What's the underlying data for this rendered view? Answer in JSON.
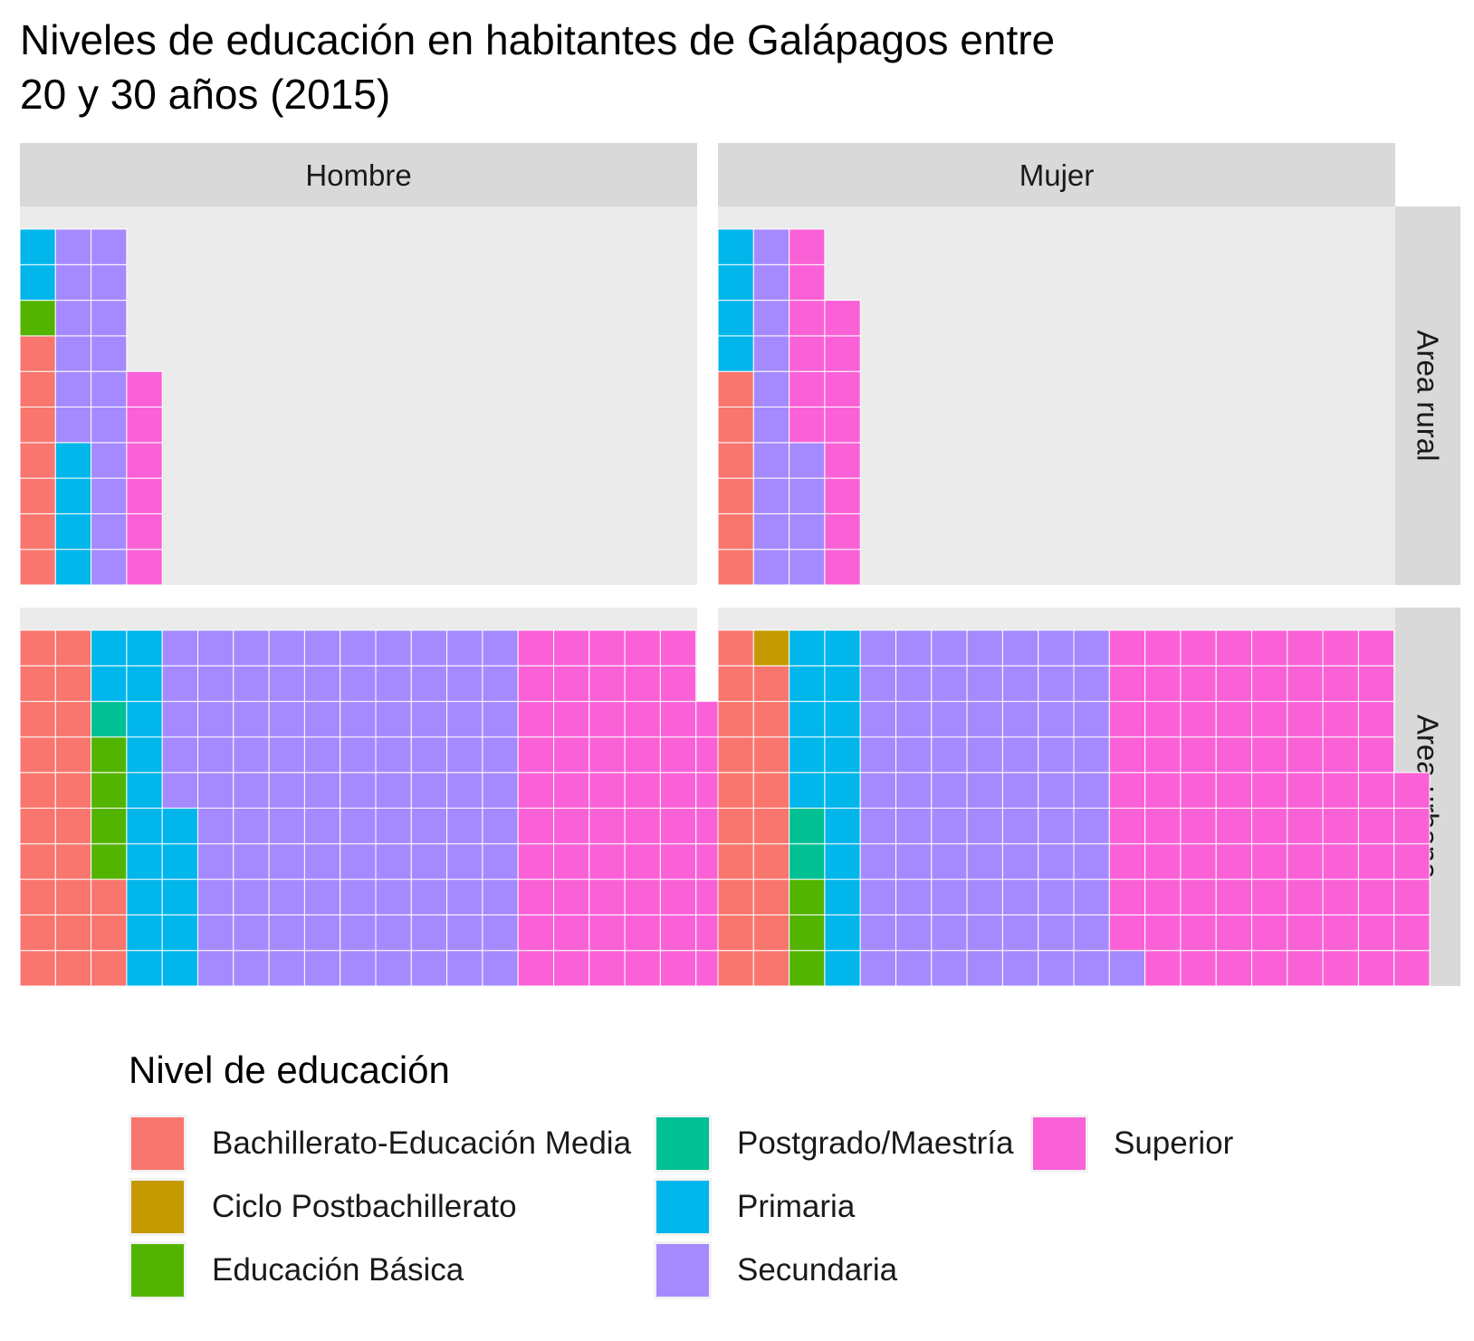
{
  "title_lines": [
    "Niveles de educación en habitantes de Galápagos entre",
    "20 y 30 años (2015)"
  ],
  "chart_data": {
    "type": "waffle",
    "title": "Niveles de educación en habitantes de Galápagos entre 20 y 30 años (2015)",
    "facet_columns": [
      "Hombre",
      "Mujer"
    ],
    "facet_rows": [
      "Area rural",
      "Area urbana"
    ],
    "grid_rows": 10,
    "fill_order": "column-wise, bottom to top, left to right",
    "categories": [
      {
        "name": "Bachillerato-Educación Media",
        "color": "#F8766D"
      },
      {
        "name": "Ciclo Postbachillerato",
        "color": "#C49A00"
      },
      {
        "name": "Educación Básica",
        "color": "#53B400"
      },
      {
        "name": "Postgrado/Maestría",
        "color": "#00C094"
      },
      {
        "name": "Primaria",
        "color": "#00B6EB"
      },
      {
        "name": "Secundaria",
        "color": "#A58AFF"
      },
      {
        "name": "Superior",
        "color": "#FB61D7"
      }
    ],
    "panels": [
      {
        "column": "Hombre",
        "row": "Area rural",
        "counts": {
          "Bachillerato-Educación Media": 7,
          "Ciclo Postbachillerato": 0,
          "Educación Básica": 1,
          "Postgrado/Maestría": 0,
          "Primaria": 6,
          "Secundaria": 16,
          "Superior": 6
        }
      },
      {
        "column": "Mujer",
        "row": "Area rural",
        "counts": {
          "Bachillerato-Educación Media": 6,
          "Ciclo Postbachillerato": 0,
          "Educación Básica": 0,
          "Postgrado/Maestría": 0,
          "Primaria": 4,
          "Secundaria": 14,
          "Superior": 14
        }
      },
      {
        "column": "Hombre",
        "row": "Area urbana",
        "counts": {
          "Bachillerato-Educación Media": 23,
          "Ciclo Postbachillerato": 0,
          "Educación Básica": 4,
          "Postgrado/Maestría": 1,
          "Primaria": 17,
          "Secundaria": 95,
          "Superior": 58
        }
      },
      {
        "column": "Mujer",
        "row": "Area urbana",
        "counts": {
          "Bachillerato-Educación Media": 19,
          "Ciclo Postbachillerato": 1,
          "Educación Básica": 3,
          "Postgrado/Maestría": 2,
          "Primaria": 15,
          "Secundaria": 71,
          "Superior": 85
        }
      }
    ]
  },
  "legend": {
    "title": "Nivel de educación",
    "items": [
      "Bachillerato-Educación Media",
      "Ciclo Postbachillerato",
      "Educación Básica",
      "Postgrado/Maestría",
      "Primaria",
      "Secundaria",
      "Superior"
    ]
  }
}
